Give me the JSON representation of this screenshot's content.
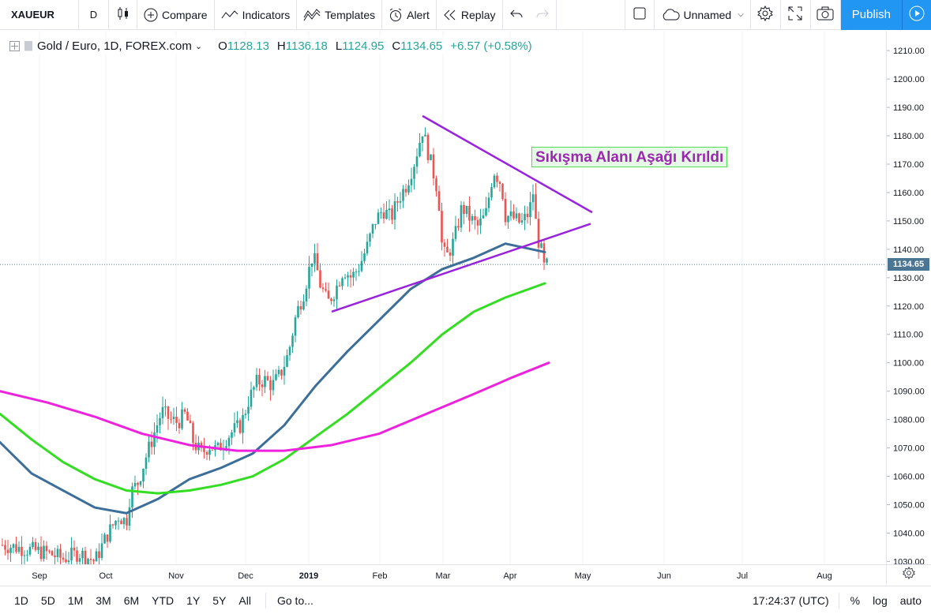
{
  "toolbar": {
    "symbol": "XAUEUR",
    "interval": "D",
    "bar_style_icon": "candles-icon",
    "compare_label": "Compare",
    "indicators_label": "Indicators",
    "templates_label": "Templates",
    "alert_label": "Alert",
    "replay_label": "Replay",
    "layout_name": "Unnamed",
    "publish_label": "Publish"
  },
  "legend": {
    "title": "Gold / Euro, 1D, FOREX.com",
    "open_label": "O",
    "open": "1128.13",
    "high_label": "H",
    "high": "1136.18",
    "low_label": "L",
    "low": "1124.95",
    "close_label": "C",
    "close": "1134.65",
    "change": "+6.57 (+0.58%)"
  },
  "annotation": "Sıkışma Alanı Aşağı Kırıldı",
  "last_price": "1134.65",
  "bottom": {
    "ranges": [
      "1D",
      "5D",
      "1M",
      "3M",
      "6M",
      "YTD",
      "1Y",
      "5Y",
      "All"
    ],
    "goto": "Go to...",
    "clock": "17:24:37 (UTC)",
    "percent": "%",
    "log": "log",
    "auto": "auto"
  },
  "colors": {
    "up": "#26a69a",
    "down": "#ef5350",
    "ma_blue": "#3b6e99",
    "ma_green": "#33dd22",
    "ma_magenta": "#ee22dd",
    "trendline": "#9922dd",
    "accent": "#2196f3"
  },
  "chart_data": {
    "type": "candlestick",
    "symbol": "Gold / Euro",
    "timeframe": "1D",
    "y_ticks": [
      1030,
      1040,
      1050,
      1060,
      1070,
      1080,
      1090,
      1100,
      1110,
      1120,
      1130,
      1140,
      1150,
      1160,
      1170,
      1180,
      1190,
      1200,
      1210
    ],
    "y_tick_labels": [
      "1030.00",
      "1040.00",
      "1050.00",
      "1060.00",
      "1070.00",
      "1080.00",
      "1090.00",
      "1100.00",
      "1110.00",
      "1120.00",
      "1130.00",
      "1140.00",
      "1150.00",
      "1160.00",
      "1170.00",
      "1180.00",
      "1190.00",
      "1200.00",
      "1210.00"
    ],
    "x_ticks": [
      "Sep",
      "Oct",
      "Nov",
      "Dec",
      "2019",
      "Feb",
      "Mar",
      "Apr",
      "May",
      "Jun",
      "Jul",
      "Aug"
    ],
    "ylim": [
      1029,
      1217
    ],
    "price_path": [
      [
        0,
        1036
      ],
      [
        20,
        1035
      ],
      [
        40,
        1034
      ],
      [
        60,
        1033
      ],
      [
        80,
        1031
      ],
      [
        100,
        1033
      ],
      [
        120,
        1030
      ],
      [
        135,
        1039
      ],
      [
        150,
        1046
      ],
      [
        160,
        1044
      ],
      [
        165,
        1054
      ],
      [
        175,
        1058
      ],
      [
        185,
        1067
      ],
      [
        195,
        1075
      ],
      [
        205,
        1083
      ],
      [
        215,
        1080
      ],
      [
        225,
        1079
      ],
      [
        235,
        1082
      ],
      [
        245,
        1072
      ],
      [
        255,
        1068
      ],
      [
        265,
        1071
      ],
      [
        275,
        1069
      ],
      [
        285,
        1073
      ],
      [
        295,
        1076
      ],
      [
        305,
        1078
      ],
      [
        315,
        1087
      ],
      [
        325,
        1093
      ],
      [
        335,
        1094
      ],
      [
        345,
        1092
      ],
      [
        355,
        1096
      ],
      [
        365,
        1103
      ],
      [
        375,
        1117
      ],
      [
        385,
        1125
      ],
      [
        395,
        1137
      ],
      [
        400,
        1135
      ],
      [
        405,
        1128
      ],
      [
        415,
        1121
      ],
      [
        425,
        1126
      ],
      [
        435,
        1133
      ],
      [
        445,
        1130
      ],
      [
        455,
        1134
      ],
      [
        465,
        1141
      ],
      [
        475,
        1150
      ],
      [
        485,
        1154
      ],
      [
        495,
        1151
      ],
      [
        505,
        1158
      ],
      [
        515,
        1163
      ],
      [
        525,
        1171
      ],
      [
        535,
        1182
      ],
      [
        545,
        1171
      ],
      [
        555,
        1160
      ],
      [
        560,
        1140
      ],
      [
        565,
        1137
      ],
      [
        575,
        1143
      ],
      [
        585,
        1155
      ],
      [
        595,
        1151
      ],
      [
        605,
        1148
      ],
      [
        615,
        1152
      ],
      [
        625,
        1168
      ],
      [
        635,
        1163
      ],
      [
        640,
        1152
      ],
      [
        650,
        1151
      ],
      [
        660,
        1149
      ],
      [
        670,
        1153
      ],
      [
        675,
        1160
      ],
      [
        680,
        1145
      ],
      [
        685,
        1140
      ],
      [
        690,
        1132
      ],
      [
        693,
        1134.65
      ]
    ],
    "series": [
      {
        "name": "MA blue",
        "color": "#3b6e99",
        "points": [
          [
            0,
            1072
          ],
          [
            40,
            1061
          ],
          [
            80,
            1055
          ],
          [
            120,
            1049
          ],
          [
            160,
            1047
          ],
          [
            200,
            1052
          ],
          [
            240,
            1059
          ],
          [
            280,
            1063
          ],
          [
            320,
            1068
          ],
          [
            360,
            1078
          ],
          [
            400,
            1092
          ],
          [
            440,
            1104
          ],
          [
            480,
            1115
          ],
          [
            520,
            1126
          ],
          [
            560,
            1133
          ],
          [
            600,
            1137
          ],
          [
            640,
            1142
          ],
          [
            690,
            1139
          ]
        ]
      },
      {
        "name": "MA green",
        "color": "#33dd22",
        "points": [
          [
            0,
            1082
          ],
          [
            40,
            1073
          ],
          [
            80,
            1065
          ],
          [
            120,
            1059
          ],
          [
            160,
            1055
          ],
          [
            200,
            1054
          ],
          [
            240,
            1055
          ],
          [
            280,
            1057
          ],
          [
            320,
            1060
          ],
          [
            360,
            1066
          ],
          [
            400,
            1074
          ],
          [
            440,
            1082
          ],
          [
            480,
            1091
          ],
          [
            520,
            1100
          ],
          [
            560,
            1110
          ],
          [
            600,
            1118
          ],
          [
            640,
            1123
          ],
          [
            690,
            1128
          ]
        ]
      },
      {
        "name": "MA magenta",
        "color": "#ee22dd",
        "points": [
          [
            0,
            1090
          ],
          [
            60,
            1086
          ],
          [
            120,
            1081
          ],
          [
            180,
            1075
          ],
          [
            240,
            1071
          ],
          [
            300,
            1069
          ],
          [
            360,
            1069
          ],
          [
            420,
            1071
          ],
          [
            480,
            1075
          ],
          [
            540,
            1082
          ],
          [
            600,
            1089
          ],
          [
            650,
            1095
          ],
          [
            695,
            1100
          ]
        ]
      }
    ],
    "trendlines": [
      {
        "name": "upper",
        "from": [
          535,
          1187
        ],
        "to": [
          750,
          1153
        ]
      },
      {
        "name": "lower",
        "from": [
          420,
          1118
        ],
        "to": [
          748,
          1149
        ]
      }
    ],
    "last_price": 1134.65
  }
}
